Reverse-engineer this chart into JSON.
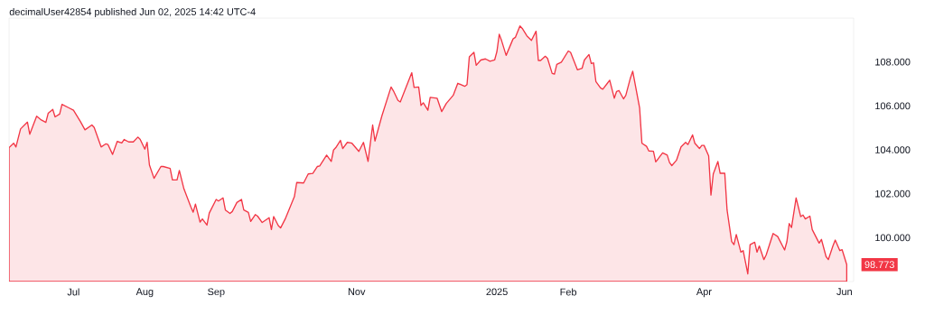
{
  "chart_data": {
    "type": "area",
    "color": "#f23645",
    "annotations": [
      "decimalUser42854 published Jun 02, 2025 14:42 UTC-4",
      {
        "text": "98.773",
        "x": "2025-06-02",
        "y": 98.773
      }
    ],
    "x": [
      "2024-06-03",
      "2024-06-05",
      "2024-06-06",
      "2024-06-08",
      "2024-06-11",
      "2024-06-12",
      "2024-06-15",
      "2024-06-17",
      "2024-06-19",
      "2024-06-20",
      "2024-06-22",
      "2024-06-23",
      "2024-06-25",
      "2024-06-26",
      "2024-06-29",
      "2024-07-01",
      "2024-07-04",
      "2024-07-06",
      "2024-07-09",
      "2024-07-10",
      "2024-07-13",
      "2024-07-15",
      "2024-07-16",
      "2024-07-18",
      "2024-07-20",
      "2024-07-22",
      "2024-07-23",
      "2024-07-25",
      "2024-07-27",
      "2024-07-29",
      "2024-07-30",
      "2024-08-01",
      "2024-08-02",
      "2024-08-03",
      "2024-08-05",
      "2024-08-08",
      "2024-08-09",
      "2024-08-12",
      "2024-08-13",
      "2024-08-15",
      "2024-08-16",
      "2024-08-18",
      "2024-08-21",
      "2024-08-22",
      "2024-08-23",
      "2024-08-25",
      "2024-08-26",
      "2024-08-28",
      "2024-08-29",
      "2024-09-01",
      "2024-09-02",
      "2024-09-04",
      "2024-09-05",
      "2024-09-07",
      "2024-09-08",
      "2024-09-10",
      "2024-09-12",
      "2024-09-13",
      "2024-09-15",
      "2024-09-16",
      "2024-09-18",
      "2024-09-19",
      "2024-09-21",
      "2024-09-24",
      "2024-09-25",
      "2024-09-26",
      "2024-09-28",
      "2024-09-29",
      "2024-10-01",
      "2024-10-05",
      "2024-10-06",
      "2024-10-09",
      "2024-10-11",
      "2024-10-13",
      "2024-10-15",
      "2024-10-16",
      "2024-10-19",
      "2024-10-21",
      "2024-10-22",
      "2024-10-23",
      "2024-10-25",
      "2024-10-26",
      "2024-10-28",
      "2024-10-30",
      "2024-11-02",
      "2024-11-04",
      "2024-11-06",
      "2024-11-08",
      "2024-11-09",
      "2024-11-12",
      "2024-11-16",
      "2024-11-17",
      "2024-11-19",
      "2024-11-20",
      "2024-11-25",
      "2024-11-26",
      "2024-11-28",
      "2024-11-29",
      "2024-11-30",
      "2024-12-02",
      "2024-12-03",
      "2024-12-06",
      "2024-12-08",
      "2024-12-10",
      "2024-12-13",
      "2024-12-15",
      "2024-12-18",
      "2024-12-19",
      "2024-12-20",
      "2024-12-22",
      "2024-12-23",
      "2024-12-25",
      "2024-12-27",
      "2024-12-29",
      "2024-12-31",
      "2025-01-01",
      "2025-01-02",
      "2025-01-03",
      "2025-01-05",
      "2025-01-08",
      "2025-01-09",
      "2025-01-11",
      "2025-01-12",
      "2025-01-14",
      "2025-01-16",
      "2025-01-18",
      "2025-01-19",
      "2025-01-20",
      "2025-01-22",
      "2025-01-23",
      "2025-01-25",
      "2025-01-26",
      "2025-01-27",
      "2025-01-29",
      "2025-02-01",
      "2025-02-02",
      "2025-02-05",
      "2025-02-07",
      "2025-02-08",
      "2025-02-10",
      "2025-02-11",
      "2025-02-12",
      "2025-02-13",
      "2025-02-15",
      "2025-02-16",
      "2025-02-18",
      "2025-02-19",
      "2025-02-21",
      "2025-02-22",
      "2025-02-23",
      "2025-02-25",
      "2025-02-26",
      "2025-02-28",
      "2025-03-01",
      "2025-03-04",
      "2025-03-05",
      "2025-03-07",
      "2025-03-08",
      "2025-03-10",
      "2025-03-11",
      "2025-03-12",
      "2025-03-14",
      "2025-03-16",
      "2025-03-17",
      "2025-03-18",
      "2025-03-20",
      "2025-03-22",
      "2025-03-24",
      "2025-03-25",
      "2025-03-27",
      "2025-03-28",
      "2025-03-30",
      "2025-03-31",
      "2025-04-01",
      "2025-04-03",
      "2025-04-04",
      "2025-04-05",
      "2025-04-07",
      "2025-04-08",
      "2025-04-10",
      "2025-04-11",
      "2025-04-13",
      "2025-04-14",
      "2025-04-15",
      "2025-04-17",
      "2025-04-18",
      "2025-04-20",
      "2025-04-21",
      "2025-04-23",
      "2025-04-24",
      "2025-04-25",
      "2025-04-27",
      "2025-04-28",
      "2025-05-01",
      "2025-05-03",
      "2025-05-06",
      "2025-05-07",
      "2025-05-08",
      "2025-05-09",
      "2025-05-11",
      "2025-05-13",
      "2025-05-14",
      "2025-05-15",
      "2025-05-17",
      "2025-05-18",
      "2025-05-21",
      "2025-05-22",
      "2025-05-24",
      "2025-05-25",
      "2025-05-27",
      "2025-05-28",
      "2025-05-30",
      "2025-05-31",
      "2025-06-02"
    ],
    "values": [
      104.1,
      104.3,
      104.13,
      104.95,
      105.26,
      104.71,
      105.53,
      105.36,
      105.25,
      105.66,
      105.84,
      105.5,
      105.63,
      106.07,
      105.91,
      105.8,
      105.29,
      104.91,
      105.13,
      105.02,
      104.13,
      104.27,
      104.24,
      103.79,
      104.38,
      104.31,
      104.47,
      104.36,
      104.36,
      104.58,
      104.47,
      104.03,
      104.34,
      103.31,
      102.7,
      103.24,
      103.24,
      103.15,
      102.63,
      102.63,
      103.06,
      102.22,
      101.4,
      101.16,
      101.53,
      100.71,
      100.85,
      100.57,
      101.12,
      101.74,
      101.67,
      101.81,
      101.26,
      101.1,
      101.19,
      101.6,
      101.74,
      101.26,
      101.15,
      100.74,
      101.05,
      100.98,
      100.69,
      100.91,
      100.37,
      100.96,
      100.55,
      100.44,
      100.85,
      101.87,
      102.51,
      102.49,
      102.9,
      102.93,
      103.24,
      103.27,
      103.76,
      103.47,
      103.99,
      104.1,
      104.43,
      104.06,
      104.34,
      104.3,
      103.93,
      104.34,
      103.47,
      105.13,
      104.4,
      105.54,
      106.86,
      106.69,
      106.25,
      106.18,
      107.51,
      106.84,
      106.86,
      106.02,
      106.14,
      105.8,
      106.39,
      106.35,
      105.74,
      106.11,
      106.48,
      107.03,
      106.89,
      106.97,
      108.23,
      108.44,
      107.85,
      108.09,
      108.14,
      108.03,
      108.09,
      108.48,
      109.26,
      108.98,
      108.3,
      109.05,
      109.12,
      109.64,
      109.53,
      109.19,
      108.98,
      109.4,
      108.07,
      108.07,
      108.26,
      108.16,
      107.48,
      107.45,
      107.89,
      107.99,
      108.5,
      108.44,
      107.64,
      107.71,
      108.09,
      108.34,
      107.93,
      107.96,
      107.11,
      106.82,
      106.76,
      107.03,
      107.17,
      106.35,
      106.66,
      106.7,
      106.32,
      106.48,
      107.27,
      107.58,
      105.91,
      104.3,
      104.16,
      103.95,
      103.93,
      103.45,
      103.58,
      103.86,
      103.76,
      103.42,
      103.28,
      103.52,
      104.13,
      104.34,
      104.24,
      104.68,
      104.3,
      104.06,
      104.2,
      104.2,
      103.72,
      101.94,
      102.9,
      103.47,
      102.93,
      102.93,
      101.26,
      99.82,
      99.68,
      100.14,
      99.34,
      99.41,
      98.35,
      99.68,
      99.79,
      99.34,
      99.62,
      99.0,
      99.21,
      100.19,
      100.05,
      99.44,
      99.82,
      100.64,
      100.46,
      101.81,
      100.96,
      101.03,
      100.85,
      100.98,
      100.37,
      99.75,
      99.92,
      99.14,
      99.0,
      99.62,
      99.89,
      99.41,
      99.45,
      98.773
    ],
    "xlim": [
      "2024-06-03",
      "2025-06-05"
    ],
    "xticks": [
      {
        "value": "2024-07-01",
        "label": "Jul"
      },
      {
        "value": "2024-08-01",
        "label": "Aug"
      },
      {
        "value": "2024-09-01",
        "label": "Sep"
      },
      {
        "value": "2024-11-01",
        "label": "Nov"
      },
      {
        "value": "2025-01-01",
        "label": "2025"
      },
      {
        "value": "2025-02-01",
        "label": "Feb"
      },
      {
        "value": "2025-04-01",
        "label": "Apr"
      },
      {
        "value": "2025-06-01",
        "label": "Jun"
      }
    ],
    "ylim": [
      98,
      110
    ],
    "yticks": [
      {
        "value": 100,
        "label": "100.000"
      },
      {
        "value": 102,
        "label": "102.000"
      },
      {
        "value": 104,
        "label": "104.000"
      },
      {
        "value": 106,
        "label": "106.000"
      },
      {
        "value": 108,
        "label": "108.000"
      }
    ]
  }
}
